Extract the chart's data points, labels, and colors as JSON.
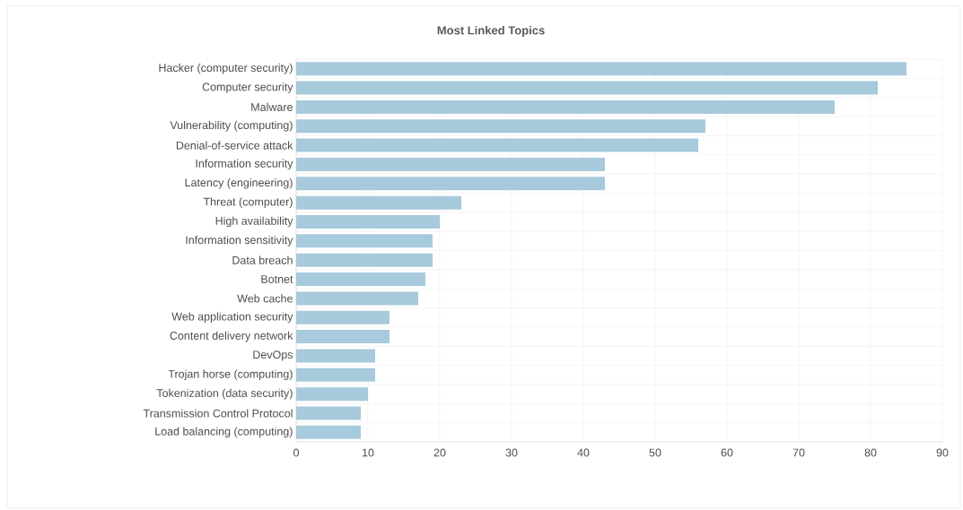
{
  "chart_data": {
    "type": "bar",
    "orientation": "horizontal",
    "title": "Most Linked Topics",
    "categories": [
      "Hacker (computer security)",
      "Computer security",
      "Malware",
      "Vulnerability (computing)",
      "Denial-of-service attack",
      "Information security",
      "Latency (engineering)",
      "Threat (computer)",
      "High availability",
      "Information sensitivity",
      "Data breach",
      "Botnet",
      "Web cache",
      "Web application security",
      "Content delivery network",
      "DevOps",
      "Trojan horse (computing)",
      "Tokenization (data security)",
      "Transmission Control Protocol",
      "Load balancing (computing)"
    ],
    "values": [
      85,
      81,
      75,
      57,
      56,
      43,
      43,
      23,
      20,
      19,
      19,
      18,
      17,
      13,
      13,
      11,
      11,
      10,
      9,
      9
    ],
    "color": "#a7cadc",
    "xlim": [
      0,
      90
    ],
    "xticks": [
      0,
      10,
      20,
      30,
      40,
      50,
      60,
      70,
      80,
      90
    ],
    "grid": true
  }
}
